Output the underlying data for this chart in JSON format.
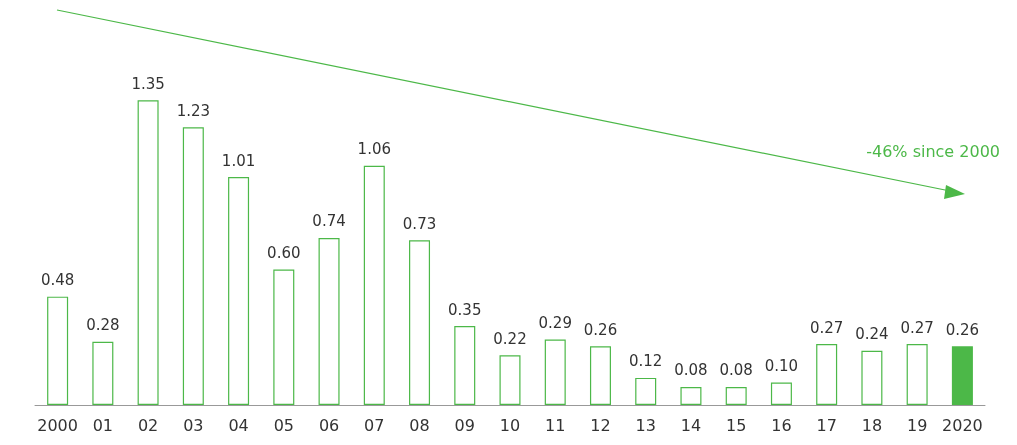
{
  "chart_data": {
    "type": "bar",
    "categories": [
      "2000",
      "01",
      "02",
      "03",
      "04",
      "05",
      "06",
      "07",
      "08",
      "09",
      "10",
      "11",
      "12",
      "13",
      "14",
      "15",
      "16",
      "17",
      "18",
      "19",
      "2020"
    ],
    "values": [
      0.48,
      0.28,
      1.35,
      1.23,
      1.01,
      0.6,
      0.74,
      1.06,
      0.73,
      0.35,
      0.22,
      0.29,
      0.26,
      0.12,
      0.08,
      0.08,
      0.1,
      0.27,
      0.24,
      0.27,
      0.26
    ],
    "value_labels": [
      "0.48",
      "0.28",
      "1.35",
      "1.23",
      "1.01",
      "0.60",
      "0.74",
      "1.06",
      "0.73",
      "0.35",
      "0.22",
      "0.29",
      "0.26",
      "0.12",
      "0.08",
      "0.08",
      "0.10",
      "0.27",
      "0.24",
      "0.27",
      "0.26"
    ],
    "color": "#4cb848",
    "colors": [
      "#ffffff",
      "#ffffff",
      "#ffffff",
      "#ffffff",
      "#ffffff",
      "#ffffff",
      "#ffffff",
      "#ffffff",
      "#ffffff",
      "#ffffff",
      "#ffffff",
      "#ffffff",
      "#ffffff",
      "#ffffff",
      "#ffffff",
      "#ffffff",
      "#ffffff",
      "#ffffff",
      "#ffffff",
      "#ffffff",
      "#4cb848"
    ],
    "annotations": [
      "-46% since 2000"
    ]
  }
}
